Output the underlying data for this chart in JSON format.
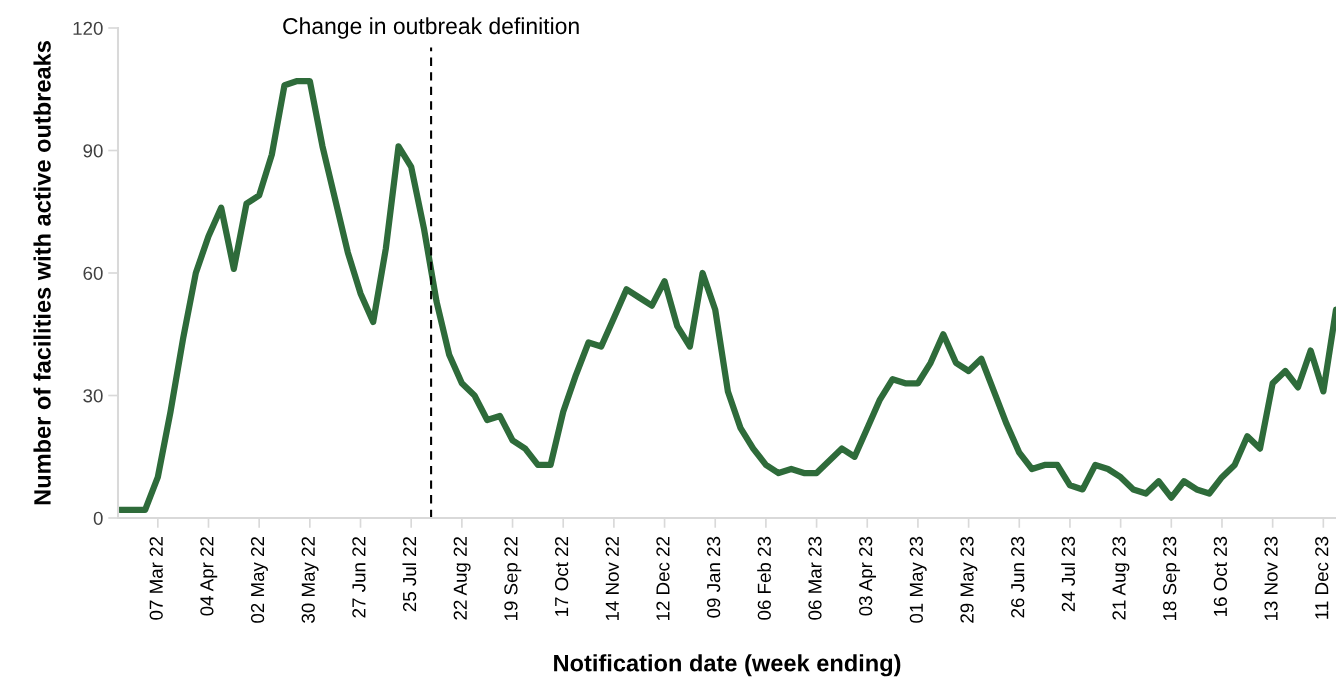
{
  "chart_data": {
    "type": "line",
    "xlabel": "Notification date (week ending)",
    "ylabel": "Number of facilities with active outbreaks",
    "x": [
      "2022-02-14",
      "2022-02-21",
      "2022-02-28",
      "2022-03-07",
      "2022-03-14",
      "2022-03-21",
      "2022-03-28",
      "2022-04-04",
      "2022-04-11",
      "2022-04-18",
      "2022-04-25",
      "2022-05-02",
      "2022-05-09",
      "2022-05-16",
      "2022-05-23",
      "2022-05-30",
      "2022-06-06",
      "2022-06-13",
      "2022-06-20",
      "2022-06-27",
      "2022-07-04",
      "2022-07-11",
      "2022-07-18",
      "2022-07-25",
      "2022-08-01",
      "2022-08-08",
      "2022-08-15",
      "2022-08-22",
      "2022-08-29",
      "2022-09-05",
      "2022-09-12",
      "2022-09-19",
      "2022-09-26",
      "2022-10-03",
      "2022-10-10",
      "2022-10-17",
      "2022-10-24",
      "2022-10-31",
      "2022-11-07",
      "2022-11-14",
      "2022-11-21",
      "2022-11-28",
      "2022-12-05",
      "2022-12-12",
      "2022-12-19",
      "2022-12-26",
      "2023-01-02",
      "2023-01-09",
      "2023-01-16",
      "2023-01-23",
      "2023-01-30",
      "2023-02-06",
      "2023-02-13",
      "2023-02-20",
      "2023-02-27",
      "2023-03-06",
      "2023-03-13",
      "2023-03-20",
      "2023-03-27",
      "2023-04-03",
      "2023-04-10",
      "2023-04-17",
      "2023-04-24",
      "2023-05-01",
      "2023-05-08",
      "2023-05-15",
      "2023-05-22",
      "2023-05-29",
      "2023-06-05",
      "2023-06-12",
      "2023-06-19",
      "2023-06-26",
      "2023-07-03",
      "2023-07-10",
      "2023-07-17",
      "2023-07-24",
      "2023-07-31",
      "2023-08-07",
      "2023-08-14",
      "2023-08-21",
      "2023-08-28",
      "2023-09-04",
      "2023-09-11",
      "2023-09-18",
      "2023-09-25",
      "2023-10-02",
      "2023-10-09",
      "2023-10-16",
      "2023-10-23",
      "2023-10-30",
      "2023-11-06",
      "2023-11-13",
      "2023-11-20",
      "2023-11-27",
      "2023-12-04",
      "2023-12-11",
      "2023-12-18"
    ],
    "series": [
      {
        "color": "#2e6b3a",
        "values": [
          2,
          2,
          2,
          10,
          26,
          44,
          60,
          69,
          76,
          61,
          77,
          79,
          89,
          106,
          107,
          107,
          91,
          78,
          65,
          55,
          48,
          66,
          91,
          86,
          71,
          53,
          40,
          33,
          30,
          24,
          25,
          19,
          17,
          13,
          13,
          26,
          35,
          43,
          42,
          49,
          56,
          54,
          52,
          58,
          47,
          42,
          60,
          51,
          31,
          22,
          17,
          13,
          11,
          12,
          11,
          11,
          14,
          17,
          15,
          22,
          29,
          34,
          33,
          33,
          38,
          45,
          38,
          36,
          39,
          31,
          23,
          16,
          12,
          13,
          13,
          8,
          7,
          13,
          12,
          10,
          7,
          6,
          9,
          5,
          9,
          7,
          6,
          10,
          13,
          20,
          17,
          33,
          36,
          32,
          41,
          31,
          51
        ]
      }
    ],
    "xlim": [
      "2022-02-13",
      "2023-12-18"
    ],
    "xticks": [
      {
        "value": "2022-03-07",
        "label": "07 Mar 22"
      },
      {
        "value": "2022-04-04",
        "label": "04 Apr 22"
      },
      {
        "value": "2022-05-02",
        "label": "02 May 22"
      },
      {
        "value": "2022-05-30",
        "label": "30 May 22"
      },
      {
        "value": "2022-06-27",
        "label": "27 Jun 22"
      },
      {
        "value": "2022-07-25",
        "label": "25 Jul 22"
      },
      {
        "value": "2022-08-22",
        "label": "22 Aug 22"
      },
      {
        "value": "2022-09-19",
        "label": "19 Sep 22"
      },
      {
        "value": "2022-10-17",
        "label": "17 Oct 22"
      },
      {
        "value": "2022-11-14",
        "label": "14 Nov 22"
      },
      {
        "value": "2022-12-12",
        "label": "12 Dec 22"
      },
      {
        "value": "2023-01-09",
        "label": "09 Jan 23"
      },
      {
        "value": "2023-02-06",
        "label": "06 Feb 23"
      },
      {
        "value": "2023-03-06",
        "label": "06 Mar 23"
      },
      {
        "value": "2023-04-03",
        "label": "03 Apr 23"
      },
      {
        "value": "2023-05-01",
        "label": "01 May 23"
      },
      {
        "value": "2023-05-29",
        "label": "29 May 23"
      },
      {
        "value": "2023-06-26",
        "label": "26 Jun 23"
      },
      {
        "value": "2023-07-24",
        "label": "24 Jul 23"
      },
      {
        "value": "2023-08-21",
        "label": "21 Aug 23"
      },
      {
        "value": "2023-09-18",
        "label": "18 Sep 23"
      },
      {
        "value": "2023-10-16",
        "label": "16 Oct 23"
      },
      {
        "value": "2023-11-13",
        "label": "13 Nov 23"
      },
      {
        "value": "2023-12-11",
        "label": "11 Dec 23"
      }
    ],
    "ylim": [
      0,
      120
    ],
    "yticks": [
      0,
      30,
      60,
      90,
      120
    ],
    "grid": false,
    "legend": false,
    "marker": "none",
    "line_style": "solid",
    "ref_lines": [
      {
        "axis": "x",
        "value": "2022-08-05",
        "label": "Change in outbreak definition",
        "color": "#000000",
        "line_style": "dashed"
      }
    ]
  }
}
